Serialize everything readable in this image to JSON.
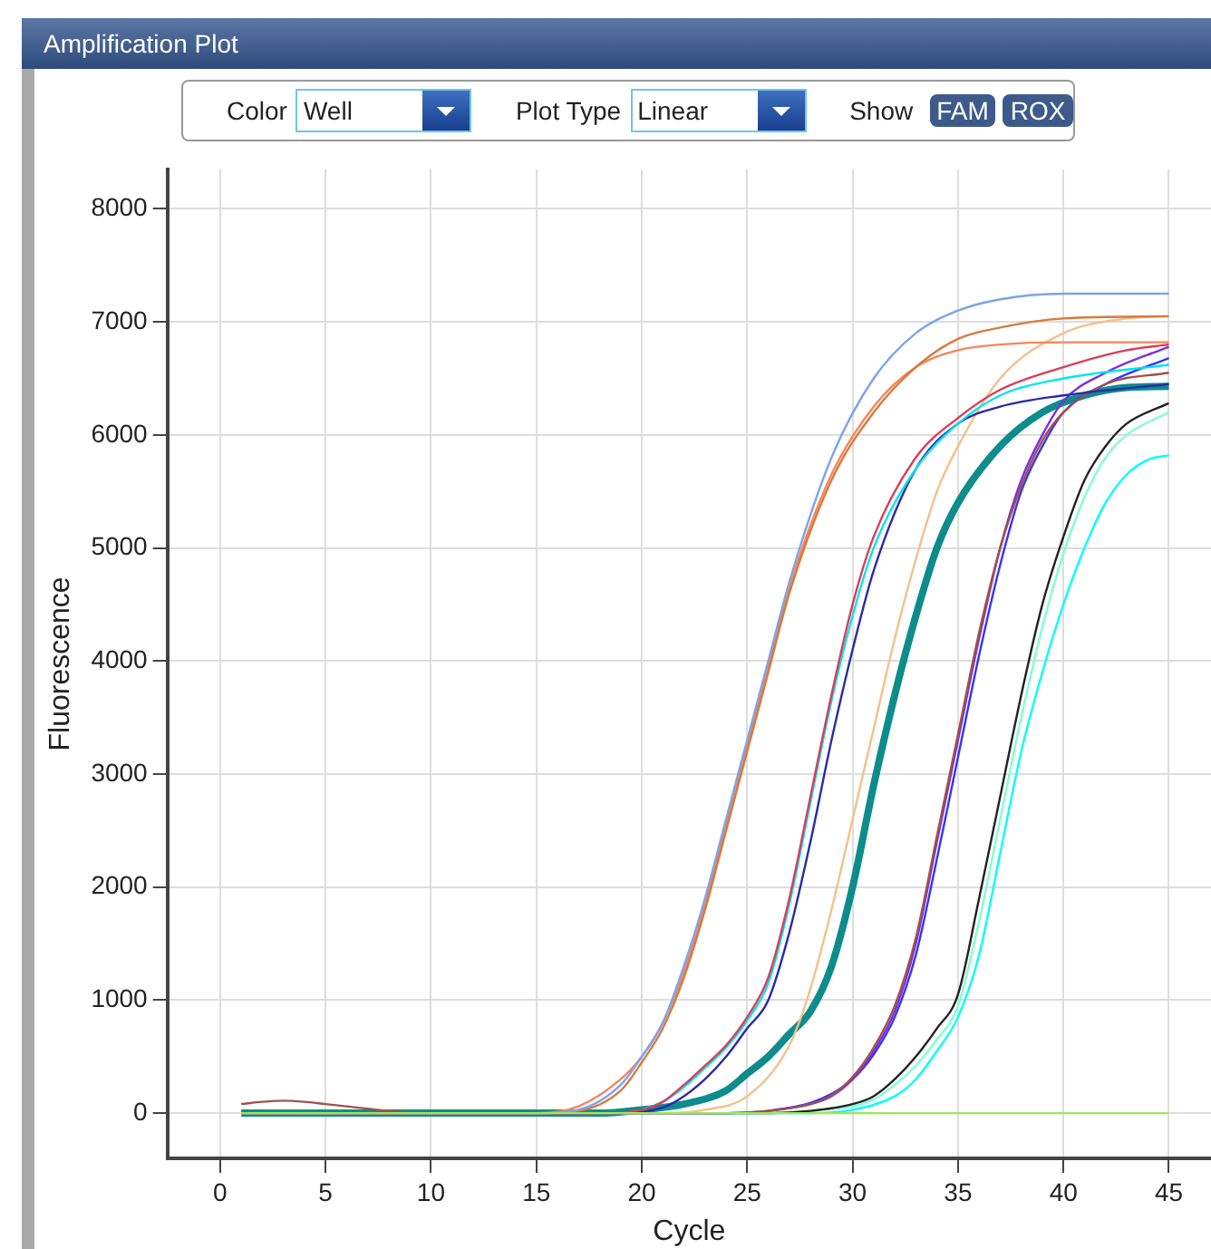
{
  "chart_data": {
    "type": "line",
    "title": "Amplification Plot",
    "xlabel": "Cycle",
    "ylabel": "Fluorescence",
    "annotations": [
      "Color",
      "Well",
      "Plot Type",
      "Linear",
      "Show",
      "FAM",
      "ROX"
    ],
    "xlim": [
      -2.5,
      47
    ],
    "ylim": [
      -400,
      8350
    ],
    "xticks": [
      0,
      5,
      10,
      15,
      20,
      25,
      30,
      35,
      40,
      45
    ],
    "yticks": [
      0,
      1000,
      2000,
      3000,
      4000,
      5000,
      6000,
      7000,
      8000
    ],
    "grid": true,
    "legend": false,
    "marker": "none",
    "line_style": "solid",
    "series": [
      {
        "color": "#9be85a",
        "x": [
          1,
          10,
          20,
          30,
          40,
          45
        ],
        "values": [
          0,
          0,
          0,
          0,
          0,
          0
        ]
      },
      {
        "color": "#7ba3f0",
        "x": [
          1,
          10,
          15,
          17,
          19,
          20,
          21,
          22,
          23,
          24,
          25,
          26,
          27,
          29,
          31,
          33,
          35,
          37,
          40,
          45
        ],
        "values": [
          0,
          0,
          0,
          30,
          250,
          500,
          800,
          1300,
          1900,
          2600,
          3300,
          4000,
          4700,
          5800,
          6500,
          6900,
          7100,
          7200,
          7250,
          7250
        ]
      },
      {
        "color": "#d9793a",
        "x": [
          1,
          10,
          15,
          17,
          19,
          20,
          21,
          22,
          23,
          24,
          25,
          26,
          27,
          29,
          31,
          33,
          35,
          37,
          40,
          45
        ],
        "values": [
          0,
          0,
          0,
          20,
          200,
          450,
          750,
          1200,
          1800,
          2500,
          3200,
          3900,
          4600,
          5600,
          6200,
          6600,
          6850,
          6950,
          7030,
          7050
        ]
      },
      {
        "color": "#f5865a",
        "x": [
          1,
          10,
          15,
          17,
          19,
          20,
          21,
          22,
          23,
          24,
          25,
          26,
          27,
          29,
          31,
          33,
          35,
          37,
          40,
          45
        ],
        "values": [
          0,
          0,
          0,
          60,
          300,
          500,
          800,
          1250,
          1850,
          2550,
          3250,
          3950,
          4650,
          5650,
          6250,
          6600,
          6750,
          6800,
          6820,
          6820
        ]
      },
      {
        "color": "#dc3c5a",
        "x": [
          1,
          10,
          18,
          20,
          21,
          22,
          23,
          24,
          25,
          26,
          27,
          28,
          29,
          30,
          31,
          33,
          35,
          37,
          40,
          43,
          45
        ],
        "values": [
          0,
          0,
          0,
          30,
          100,
          250,
          420,
          600,
          850,
          1200,
          1900,
          2800,
          3700,
          4500,
          5100,
          5800,
          6150,
          6400,
          6600,
          6750,
          6800
        ]
      },
      {
        "color": "#00e5ee",
        "x": [
          20,
          21,
          22,
          23,
          24,
          25,
          26,
          27,
          28,
          29,
          30,
          31,
          33,
          35,
          37,
          40,
          45
        ],
        "values": [
          30,
          100,
          230,
          400,
          580,
          820,
          1150,
          1850,
          2750,
          3650,
          4400,
          5000,
          5700,
          6100,
          6350,
          6500,
          6620
        ]
      },
      {
        "color": "#2a2aa8",
        "x": [
          1,
          10,
          19,
          21,
          22,
          23,
          24,
          25,
          26,
          27,
          28,
          29,
          30,
          31,
          33,
          35,
          37,
          40,
          45
        ],
        "values": [
          0,
          0,
          0,
          50,
          150,
          300,
          500,
          750,
          1000,
          1600,
          2400,
          3300,
          4100,
          4800,
          5700,
          6100,
          6250,
          6350,
          6450
        ]
      },
      {
        "color": "#f5c08a",
        "x": [
          1,
          10,
          21,
          23,
          25,
          27,
          28,
          29,
          30,
          31,
          32,
          33,
          34,
          35,
          37,
          40,
          43,
          45
        ],
        "values": [
          0,
          0,
          0,
          30,
          150,
          600,
          1100,
          1800,
          2600,
          3400,
          4200,
          4900,
          5500,
          5900,
          6500,
          6900,
          7030,
          7050
        ]
      },
      {
        "color": "#a0524a",
        "x": [
          1,
          2,
          3,
          4,
          5,
          6,
          8,
          10,
          15,
          24,
          26,
          28,
          29,
          30,
          31,
          32,
          33,
          34,
          35,
          36,
          37,
          38,
          39,
          40,
          42,
          45
        ],
        "values": [
          80,
          100,
          110,
          100,
          80,
          60,
          20,
          0,
          0,
          0,
          20,
          80,
          160,
          320,
          580,
          950,
          1550,
          2450,
          3350,
          4250,
          5000,
          5550,
          5950,
          6200,
          6450,
          6550
        ]
      },
      {
        "color": "#7b2fe0",
        "x": [
          26,
          28,
          29,
          30,
          31,
          32,
          33,
          34,
          35,
          36,
          37,
          38,
          39,
          40,
          42,
          45
        ],
        "values": [
          20,
          80,
          150,
          300,
          550,
          900,
          1500,
          2400,
          3300,
          4200,
          5000,
          5600,
          6000,
          6300,
          6550,
          6780
        ]
      },
      {
        "color": "#3333ff",
        "x": [
          1,
          10,
          24,
          26,
          28,
          29,
          30,
          31,
          32,
          33,
          34,
          35,
          36,
          37,
          38,
          39,
          40,
          42,
          45
        ],
        "values": [
          0,
          0,
          0,
          20,
          90,
          170,
          300,
          520,
          850,
          1400,
          2250,
          3150,
          4050,
          4850,
          5500,
          5900,
          6200,
          6450,
          6680
        ]
      },
      {
        "color": "#222222",
        "x": [
          1,
          10,
          26,
          28,
          30,
          31,
          32,
          33,
          34,
          35,
          36,
          37,
          38,
          39,
          40,
          41,
          42,
          43,
          45
        ],
        "values": [
          0,
          0,
          0,
          20,
          80,
          150,
          300,
          500,
          750,
          1050,
          1900,
          2800,
          3700,
          4500,
          5100,
          5600,
          5900,
          6100,
          6280
        ]
      },
      {
        "color": "#7fffd4",
        "x": [
          1,
          10,
          26,
          28,
          30,
          31,
          32,
          33,
          34,
          35,
          36,
          37,
          38,
          39,
          40,
          41,
          42,
          43,
          45
        ],
        "values": [
          0,
          0,
          0,
          20,
          60,
          120,
          250,
          420,
          650,
          950,
          1700,
          2600,
          3500,
          4300,
          4950,
          5450,
          5800,
          6000,
          6200
        ]
      },
      {
        "color": "#00ffff",
        "x": [
          1,
          10,
          28,
          30,
          32,
          33,
          34,
          35,
          36,
          37,
          38,
          39,
          40,
          41,
          42,
          43,
          44,
          45
        ],
        "values": [
          0,
          0,
          0,
          30,
          150,
          300,
          550,
          850,
          1400,
          2300,
          3200,
          3900,
          4500,
          5000,
          5400,
          5650,
          5780,
          5820
        ]
      },
      {
        "color": "#0e8c8c",
        "x": [
          1,
          10,
          18,
          20,
          22,
          24,
          25,
          26,
          27,
          28,
          29,
          30,
          31,
          32,
          33,
          34,
          35,
          37,
          39,
          41,
          43,
          45
        ],
        "values": [
          0,
          0,
          0,
          30,
          80,
          200,
          350,
          500,
          700,
          900,
          1300,
          2000,
          2900,
          3700,
          4400,
          5000,
          5400,
          5900,
          6200,
          6350,
          6420,
          6430
        ]
      }
    ]
  }
}
